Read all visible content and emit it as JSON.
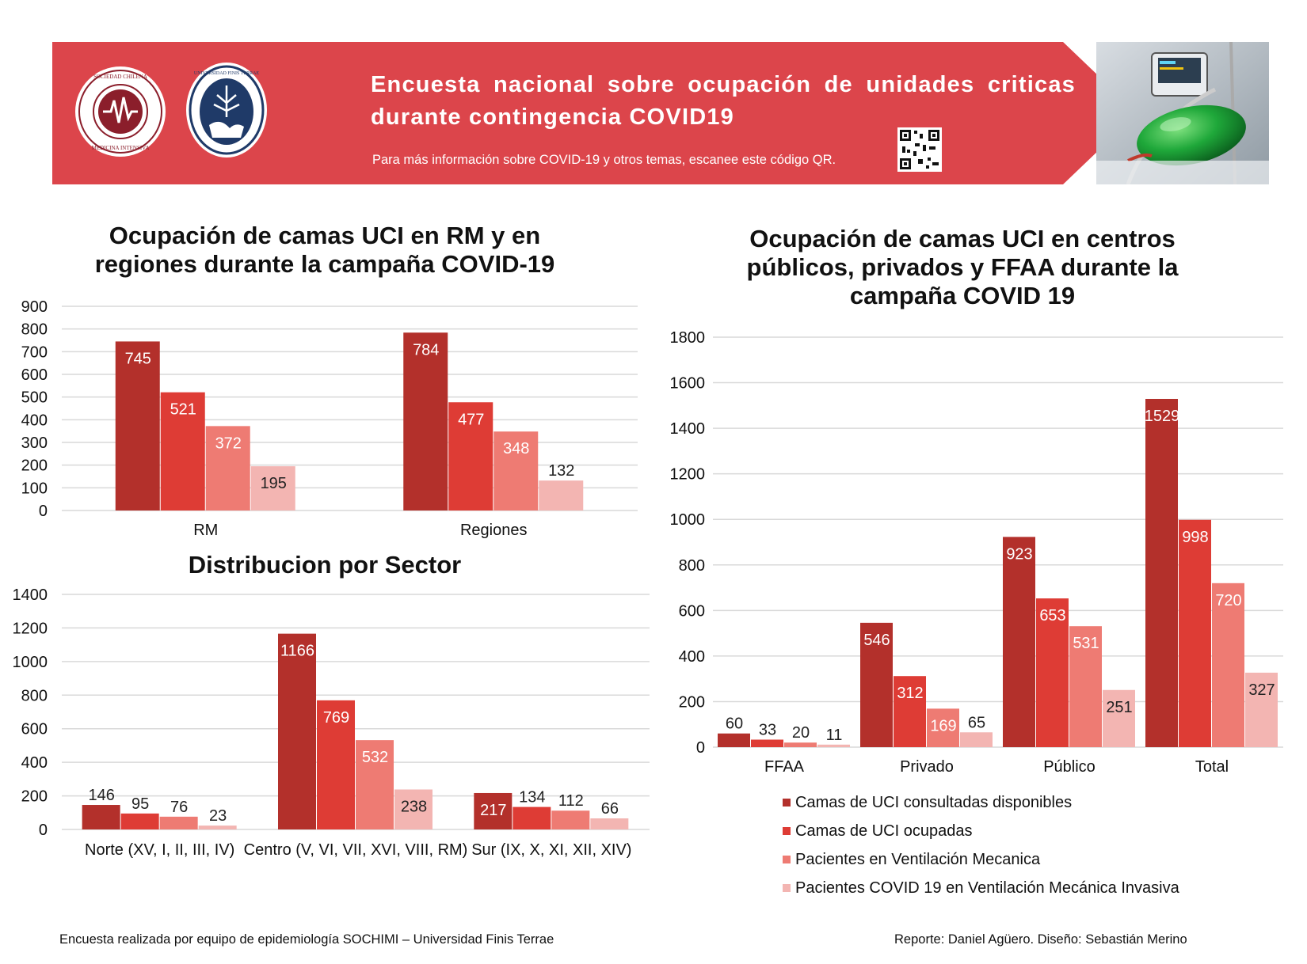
{
  "banner": {
    "title": "Encuesta nacional sobre ocupación de unidades criticas durante contingencia COVID19",
    "subtitle": "Para más información sobre COVID-19 y otros temas, escanee este código QR.",
    "logo1_text": "SOCIEDAD CHILENA DE MEDICINA INTENSIVA",
    "logo2_text": "UNIVERSIDAD FINIS TERRAE · VINCE IN BONO MALUM"
  },
  "colors": {
    "banner": "#dc454b",
    "series": [
      "#b3302b",
      "#de3c35",
      "#ee7b73",
      "#f3b5b2"
    ],
    "grid": "#d9d9d9"
  },
  "icons": {
    "qr": "qr-code-icon",
    "photo": "ventilator-photo-icon"
  },
  "chart_data": [
    {
      "type": "bar",
      "title": "Ocupación de camas UCI en RM y en regiones durante la campaña COVID-19",
      "categories": [
        "RM",
        "Regiones"
      ],
      "series": [
        {
          "values": [
            745,
            784
          ]
        },
        {
          "values": [
            521,
            477
          ]
        },
        {
          "values": [
            372,
            348
          ]
        },
        {
          "values": [
            195,
            132
          ]
        }
      ],
      "ylim": [
        0,
        900
      ],
      "yticks": [
        0,
        100,
        200,
        300,
        400,
        500,
        600,
        700,
        800,
        900
      ],
      "grid": true
    },
    {
      "type": "bar",
      "title": "Distribucion por Sector",
      "categories": [
        "Norte (XV, I, II, III, IV)",
        "Centro (V, VI, VII, XVI, VIII, RM)",
        "Sur (IX, X, XI, XII, XIV)"
      ],
      "series": [
        {
          "values": [
            146,
            1166,
            217
          ]
        },
        {
          "values": [
            95,
            769,
            134
          ]
        },
        {
          "values": [
            76,
            532,
            112
          ]
        },
        {
          "values": [
            23,
            238,
            66
          ]
        }
      ],
      "ylim": [
        0,
        1400
      ],
      "yticks": [
        0,
        200,
        400,
        600,
        800,
        1000,
        1200,
        1400
      ],
      "grid": true
    },
    {
      "type": "bar",
      "title": "Ocupación de camas UCI en centros públicos, privados y FFAA durante la campaña COVID 19",
      "categories": [
        "FFAA",
        "Privado",
        "Público",
        "Total"
      ],
      "series": [
        {
          "name": "Camas de UCI consultadas disponibles",
          "values": [
            60,
            546,
            923,
            1529
          ]
        },
        {
          "name": "Camas de UCI ocupadas",
          "values": [
            33,
            312,
            653,
            998
          ]
        },
        {
          "name": "Pacientes en Ventilación Mecanica",
          "values": [
            20,
            169,
            531,
            720
          ]
        },
        {
          "name": "Pacientes COVID 19 en Ventilación Mecánica Invasiva",
          "values": [
            11,
            65,
            251,
            327
          ]
        }
      ],
      "ylim": [
        0,
        1800
      ],
      "yticks": [
        0,
        200,
        400,
        600,
        800,
        1000,
        1200,
        1400,
        1600,
        1800
      ],
      "grid": true,
      "legend": "bottom"
    }
  ],
  "footer": {
    "left": "Encuesta realizada por equipo de epidemiología SOCHIMI – Universidad Finis Terrae",
    "right": "Reporte: Daniel Agüero. Diseño: Sebastián Merino"
  }
}
